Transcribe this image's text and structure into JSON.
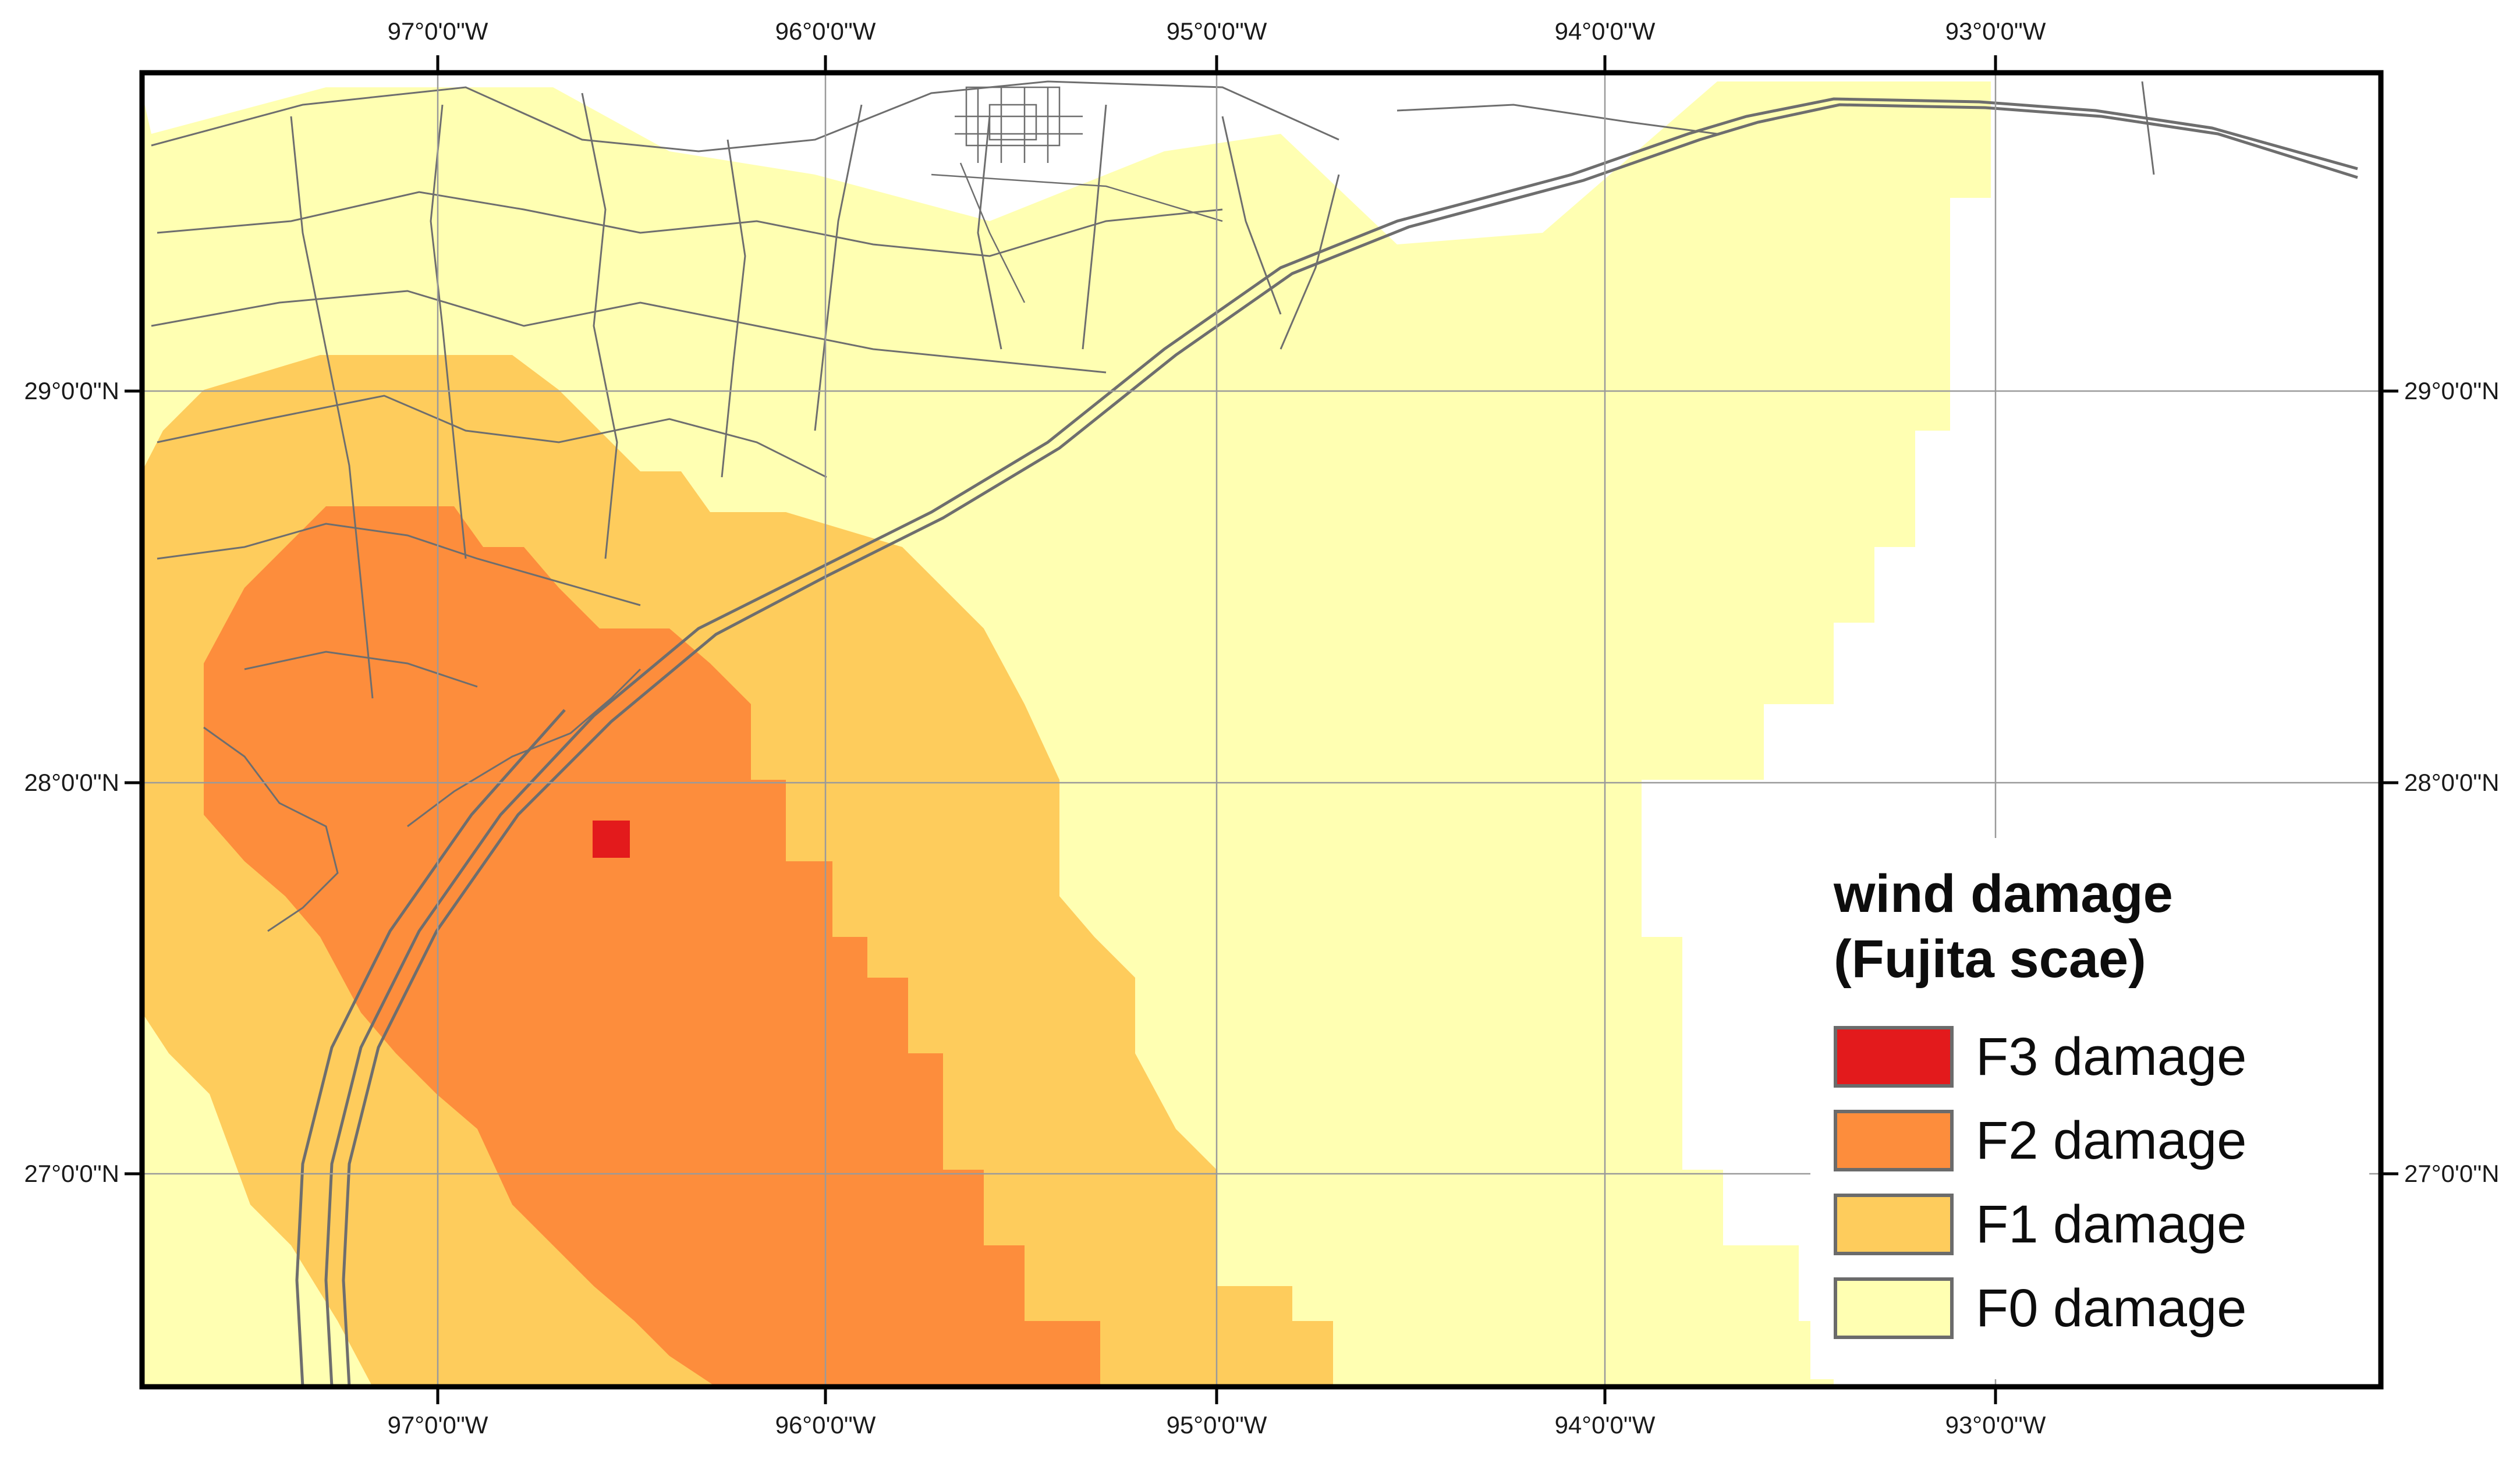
{
  "map": {
    "axes": {
      "top": [
        "97°0'0\"W",
        "96°0'0\"W",
        "95°0'0\"W",
        "94°0'0\"W",
        "93°0'0\"W"
      ],
      "bottom": [
        "97°0'0\"W",
        "96°0'0\"W",
        "95°0'0\"W",
        "94°0'0\"W",
        "93°0'0\"W"
      ],
      "left": [
        "29°0'0\"N",
        "28°0'0\"N",
        "27°0'0\"N"
      ],
      "right": [
        "29°0'0\"N",
        "28°0'0\"N",
        "27°0'0\"N"
      ]
    },
    "legend": {
      "title_line1": "wind damage",
      "title_line2": "(Fujita scae)",
      "items": [
        {
          "label": "F3 damage",
          "color": "#e31a1c"
        },
        {
          "label": "F2 damage",
          "color": "#fd8d3c"
        },
        {
          "label": "F1 damage",
          "color": "#fecc5c"
        },
        {
          "label": "F0 damage",
          "color": "#ffffb2"
        }
      ]
    },
    "colors": {
      "f3": "#e31a1c",
      "f2": "#fd8d3c",
      "f1": "#fecc5c",
      "f0": "#ffffb2",
      "county_lines": "#6e6e6e",
      "graticule": "#9a9a9a",
      "frame": "#000000"
    }
  }
}
